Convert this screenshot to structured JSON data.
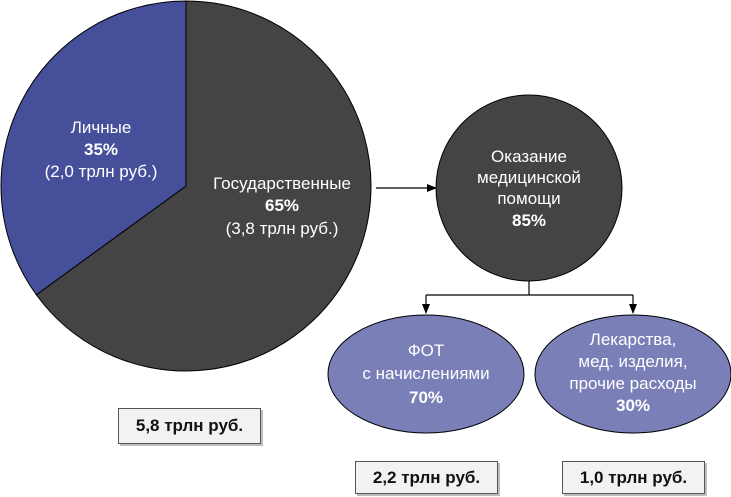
{
  "colors": {
    "government": "#444444",
    "personal": "#46509a",
    "medical": "#444444",
    "sub_nodes": "#7a7fb8",
    "outline": "#000000"
  },
  "pie": {
    "personal": {
      "label": "Личные",
      "percent": "35%",
      "amount": "(2,0 трлн руб.)",
      "share": 35
    },
    "government": {
      "label": "Государственные",
      "percent": "65%",
      "amount": "(3,8 трлн руб.)",
      "share": 65
    },
    "total": "5,8 трлн руб."
  },
  "medical_care": {
    "lines": [
      "Оказание",
      "медицинской",
      "помощи"
    ],
    "percent": "85%"
  },
  "payroll": {
    "lines": [
      "ФОТ",
      "с начислениями"
    ],
    "percent": "70%",
    "amount": "2,2 трлн руб."
  },
  "drugs": {
    "lines": [
      "Лекарства,",
      "мед. изделия,",
      "прочие расходы"
    ],
    "percent": "30%",
    "amount": "1,0 трлн руб."
  }
}
